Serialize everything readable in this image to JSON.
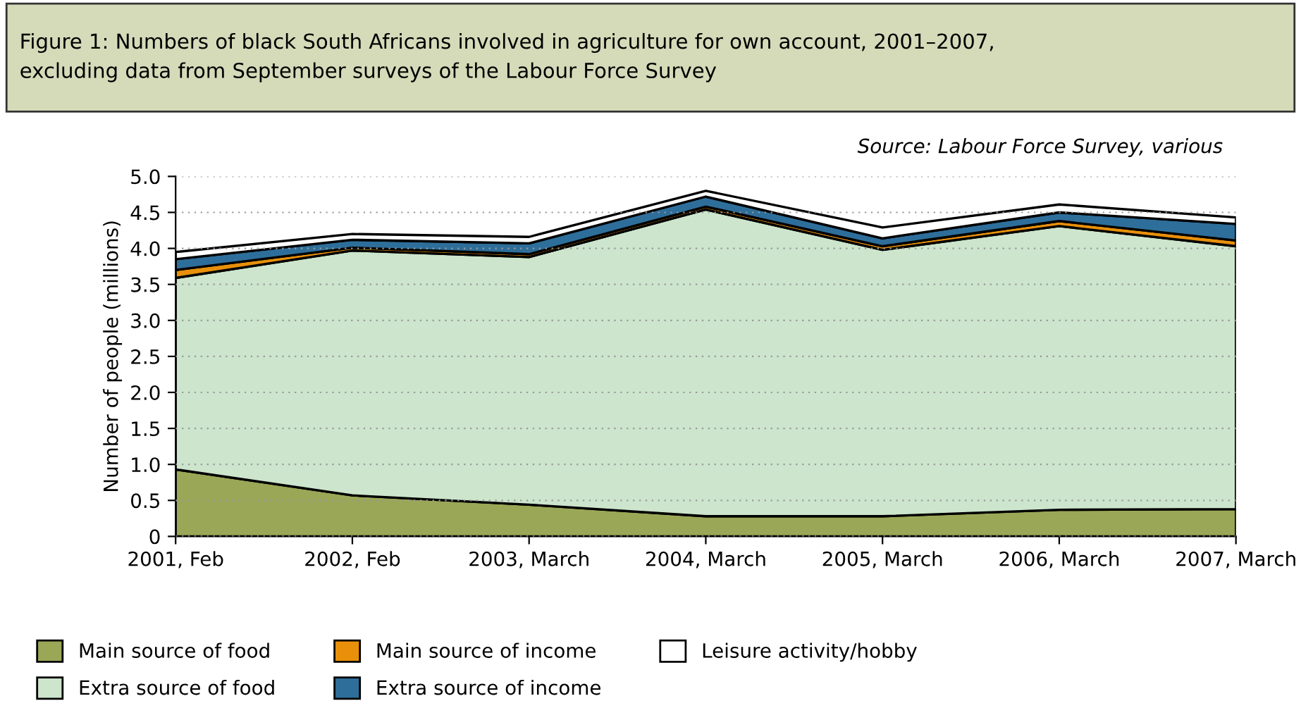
{
  "chart_data": {
    "type": "area",
    "stacked": true,
    "title": "Figure 1: Numbers of black South Africans involved in agriculture for own account, 2001–2007,\nexcluding data from September surveys of the Labour Force Survey",
    "ylabel": "Number of people (millions)",
    "annotations": [
      "Source: Labour Force Survey, various"
    ],
    "categories": [
      "2001, Feb",
      "2002, Feb",
      "2003, March",
      "2004, March",
      "2005, March",
      "2006, March",
      "2007, March"
    ],
    "series": [
      {
        "name": "Main source of food",
        "color": "#9aa757",
        "values": [
          0.93,
          0.57,
          0.44,
          0.28,
          0.28,
          0.37,
          0.38
        ]
      },
      {
        "name": "Extra source of food",
        "color": "#cce5cc",
        "values": [
          2.66,
          3.4,
          3.44,
          4.26,
          3.7,
          3.94,
          3.65
        ]
      },
      {
        "name": "Main source of income",
        "color": "#e8900a",
        "values": [
          0.11,
          0.04,
          0.04,
          0.04,
          0.05,
          0.07,
          0.08
        ]
      },
      {
        "name": "Extra source of income",
        "color": "#2e6e9a",
        "values": [
          0.15,
          0.11,
          0.15,
          0.14,
          0.11,
          0.12,
          0.23
        ]
      },
      {
        "name": "Leisure activity/hobby",
        "color": "#ffffff",
        "values": [
          0.1,
          0.08,
          0.09,
          0.08,
          0.15,
          0.11,
          0.09
        ]
      }
    ],
    "ylim": [
      0,
      5.0
    ],
    "yticks": [
      {
        "value": 0,
        "label": "0"
      },
      {
        "value": 0.5,
        "label": "0.5"
      },
      {
        "value": 1.0,
        "label": "1.0"
      },
      {
        "value": 1.5,
        "label": "1.5"
      },
      {
        "value": 2.0,
        "label": "2.0"
      },
      {
        "value": 2.5,
        "label": "2.5"
      },
      {
        "value": 3.0,
        "label": "3.0"
      },
      {
        "value": 3.5,
        "label": "3.5"
      },
      {
        "value": 4.0,
        "label": "4.0"
      },
      {
        "value": 4.5,
        "label": "4.5"
      },
      {
        "value": 5.0,
        "label": "5.0"
      }
    ],
    "grid": "y",
    "legend": "bottom"
  }
}
